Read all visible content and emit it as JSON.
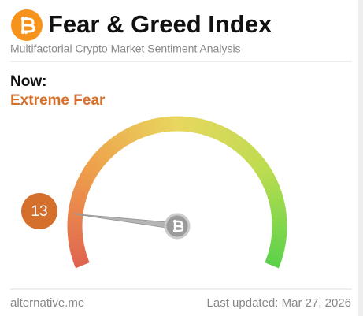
{
  "chart_data": {
    "type": "gauge",
    "title": "Fear & Greed Index",
    "subtitle": "Multifactorial Crypto Market Sentiment Analysis",
    "now_label": "Now:",
    "classification": "Extreme Fear",
    "value": 13,
    "ylim": [
      0,
      100
    ],
    "source": "alternative.me",
    "last_updated": "Last updated: Mar 27, 2026"
  }
}
